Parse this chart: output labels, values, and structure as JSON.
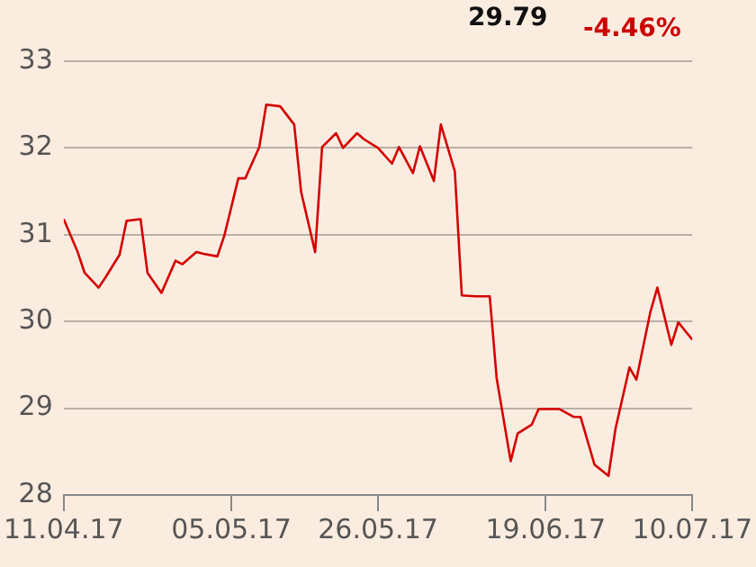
{
  "chart_data": {
    "type": "line",
    "annotations": [
      "29.79",
      "-4.46%"
    ],
    "x": [
      "2017-04-11",
      "2017-04-13",
      "2017-04-14",
      "2017-04-16",
      "2017-04-17",
      "2017-04-19",
      "2017-04-20",
      "2017-04-22",
      "2017-04-23",
      "2017-04-25",
      "2017-04-27",
      "2017-04-28",
      "2017-04-30",
      "2017-05-01",
      "2017-05-03",
      "2017-05-04",
      "2017-05-06",
      "2017-05-07",
      "2017-05-09",
      "2017-05-10",
      "2017-05-12",
      "2017-05-14",
      "2017-05-15",
      "2017-05-17",
      "2017-05-18",
      "2017-05-20",
      "2017-05-21",
      "2017-05-23",
      "2017-05-24",
      "2017-05-26",
      "2017-05-28",
      "2017-05-29",
      "2017-05-31",
      "2017-06-01",
      "2017-06-03",
      "2017-06-04",
      "2017-06-06",
      "2017-06-07",
      "2017-06-09",
      "2017-06-11",
      "2017-06-12",
      "2017-06-14",
      "2017-06-15",
      "2017-06-17",
      "2017-06-18",
      "2017-06-20",
      "2017-06-21",
      "2017-06-23",
      "2017-06-24",
      "2017-06-26",
      "2017-06-28",
      "2017-06-29",
      "2017-07-01",
      "2017-07-02",
      "2017-07-04",
      "2017-07-05",
      "2017-07-07",
      "2017-07-08",
      "2017-07-10"
    ],
    "series": [
      {
        "color": "#d40000",
        "values": [
          31.18,
          30.8,
          30.56,
          30.39,
          30.51,
          30.77,
          31.16,
          31.18,
          30.56,
          30.33,
          30.7,
          30.66,
          30.8,
          30.78,
          30.75,
          30.99,
          31.65,
          31.65,
          32.01,
          32.5,
          32.48,
          32.27,
          31.49,
          30.8,
          32.01,
          32.17,
          32,
          32.17,
          32.1,
          32,
          31.82,
          32.01,
          31.71,
          32.02,
          31.62,
          32.27,
          31.73,
          30.3,
          30.29,
          30.29,
          29.34,
          28.39,
          28.71,
          28.81,
          28.99,
          28.99,
          28.99,
          28.9,
          28.9,
          28.35,
          28.22,
          28.76,
          29.47,
          29.33,
          30.11,
          30.39,
          29.73,
          29.99,
          29.79
        ]
      }
    ],
    "xlim": [
      "2017-04-11",
      "2017-07-10"
    ],
    "xticks": [
      {
        "value": "2017-04-11",
        "label": "11.04.17"
      },
      {
        "value": "2017-05-05",
        "label": "05.05.17"
      },
      {
        "value": "2017-05-26",
        "label": "26.05.17"
      },
      {
        "value": "2017-06-19",
        "label": "19.06.17"
      },
      {
        "value": "2017-07-10",
        "label": "10.07.17"
      }
    ],
    "ylim": [
      28,
      33
    ],
    "yticks": [
      28,
      29,
      30,
      31,
      32,
      33
    ],
    "grid": "y",
    "legend": false,
    "marker": "none",
    "line_style": "solid"
  }
}
